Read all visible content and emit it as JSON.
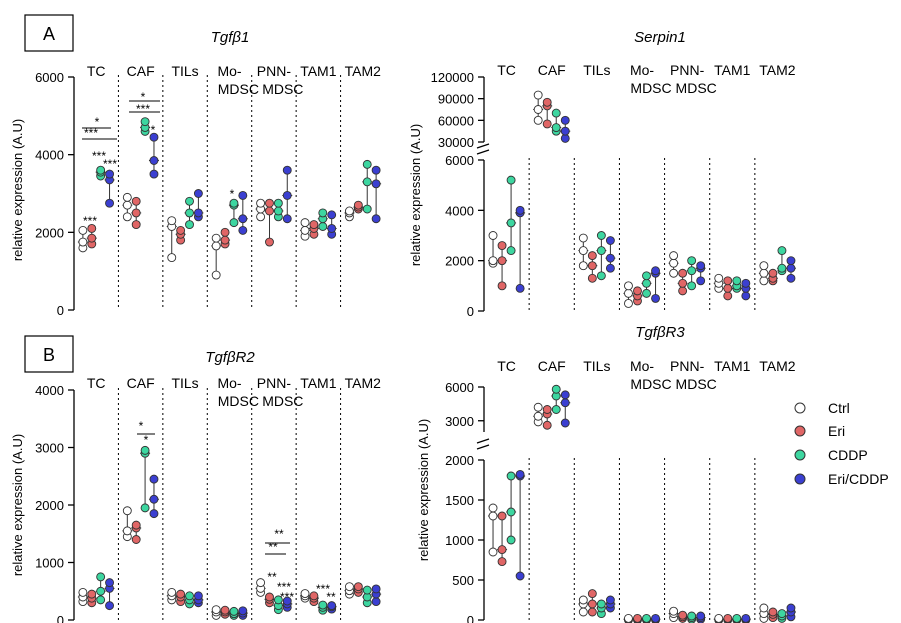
{
  "panel_labels": {
    "a": "A",
    "b": "B"
  },
  "legend": [
    {
      "label": "Ctrl",
      "color": "#ffffff"
    },
    {
      "label": "Eri",
      "color": "#e06666"
    },
    {
      "label": "CDDP",
      "color": "#3dd6a0"
    },
    {
      "label": "Eri/CDDP",
      "color": "#3b3fd1"
    }
  ],
  "chart_data": [
    {
      "type": "scatter",
      "title": "Tgfβ1",
      "ylabel": "relative expression (A.U)",
      "ylim": [
        0,
        6000
      ],
      "yticks": [
        "0",
        "2000",
        "4000",
        "6000"
      ],
      "categories": [
        "TC",
        "CAF",
        "TILs",
        "Mo-\nMDSC",
        "PNN-\nMDSC",
        "TAM1",
        "TAM2"
      ],
      "category_labels": [
        [
          "TC"
        ],
        [
          "CAF"
        ],
        [
          "TILs"
        ],
        [
          "Mo-",
          "MDSC"
        ],
        [
          "PNN-",
          "MDSC"
        ],
        [
          "TAM1"
        ],
        [
          "TAM2"
        ]
      ],
      "groups": [
        "Ctrl",
        "Eri",
        "CDDP",
        "Eri/CDDP"
      ],
      "values": [
        [
          [
            1600,
            1750,
            2050
          ],
          [
            1700,
            1850,
            2100
          ],
          [
            3450,
            3550,
            3600
          ],
          [
            2750,
            3350,
            3500
          ]
        ],
        [
          [
            2400,
            2700,
            2900
          ],
          [
            2200,
            2500,
            2800
          ],
          [
            4600,
            4700,
            4850
          ],
          [
            3500,
            3850,
            4450
          ]
        ],
        [
          [
            1350,
            2150,
            2300
          ],
          [
            1800,
            1950,
            2050
          ],
          [
            2200,
            2500,
            2800
          ],
          [
            2400,
            2500,
            3000
          ]
        ],
        [
          [
            900,
            1650,
            1850
          ],
          [
            1700,
            1800,
            2000
          ],
          [
            2250,
            2700,
            2750
          ],
          [
            2050,
            2350,
            2950
          ]
        ],
        [
          [
            2400,
            2600,
            2750
          ],
          [
            1750,
            2550,
            2750
          ],
          [
            2400,
            2550,
            2750
          ],
          [
            2350,
            2950,
            3600
          ]
        ],
        [
          [
            1900,
            2050,
            2250
          ],
          [
            1950,
            2100,
            2200
          ],
          [
            2150,
            2350,
            2500
          ],
          [
            1950,
            2100,
            2450
          ]
        ],
        [
          [
            2400,
            2500,
            2550
          ],
          [
            2600,
            2650,
            2700
          ],
          [
            2600,
            3300,
            3750
          ],
          [
            2350,
            3250,
            3600
          ]
        ]
      ],
      "annotations": [
        "***",
        "*",
        "***",
        "***",
        "***",
        "***",
        "*",
        "***",
        "*",
        "*"
      ]
    },
    {
      "type": "scatter",
      "title": "Serpin1",
      "ylabel": "relative expression (A.U)",
      "ylim_lower": [
        0,
        6000
      ],
      "ylim_upper": [
        30000,
        120000
      ],
      "yticks_lower": [
        "0",
        "2000",
        "4000",
        "6000"
      ],
      "yticks_upper": [
        "30000",
        "60000",
        "90000",
        "120000"
      ],
      "categories": [
        "TC",
        "CAF",
        "TILs",
        "Mo-\nMDSC",
        "PNN-\nMDSC",
        "TAM1",
        "TAM2"
      ],
      "category_labels": [
        [
          "TC"
        ],
        [
          "CAF"
        ],
        [
          "TILs"
        ],
        [
          "Mo-",
          "MDSC"
        ],
        [
          "PNN-",
          "MDSC"
        ],
        [
          "TAM1"
        ],
        [
          "TAM2"
        ]
      ],
      "groups": [
        "Ctrl",
        "Eri",
        "CDDP",
        "Eri/CDDP"
      ],
      "values": [
        [
          [
            1900,
            2000,
            3000
          ],
          [
            1000,
            2000,
            2600
          ],
          [
            2400,
            3500,
            5200
          ],
          [
            900,
            3900,
            4000
          ]
        ],
        [
          [
            60000,
            75000,
            95000
          ],
          [
            55000,
            80000,
            85000
          ],
          [
            45000,
            50000,
            70000
          ],
          [
            35000,
            45000,
            60000
          ]
        ],
        [
          [
            1800,
            2400,
            2900
          ],
          [
            1300,
            1800,
            2200
          ],
          [
            1400,
            2400,
            3000
          ],
          [
            1700,
            2100,
            2800
          ]
        ],
        [
          [
            300,
            700,
            1000
          ],
          [
            400,
            600,
            800
          ],
          [
            700,
            1100,
            1400
          ],
          [
            500,
            1500,
            1600
          ]
        ],
        [
          [
            1500,
            1900,
            2200
          ],
          [
            800,
            1100,
            1500
          ],
          [
            1000,
            1600,
            2000
          ],
          [
            1200,
            1700,
            1800
          ]
        ],
        [
          [
            900,
            1100,
            1300
          ],
          [
            600,
            900,
            1200
          ],
          [
            900,
            1000,
            1200
          ],
          [
            600,
            900,
            1100
          ]
        ],
        [
          [
            1200,
            1500,
            1800
          ],
          [
            1200,
            1300,
            1500
          ],
          [
            1600,
            1700,
            2400
          ],
          [
            1300,
            1700,
            2000
          ]
        ]
      ]
    },
    {
      "type": "scatter",
      "title": "TgfβR2",
      "ylabel": "relative expression (A.U)",
      "ylim": [
        0,
        4000
      ],
      "yticks": [
        "0",
        "1000",
        "2000",
        "3000",
        "4000"
      ],
      "categories": [
        "TC",
        "CAF",
        "TILs",
        "Mo-\nMDSC",
        "PNN-\nMDSC",
        "TAM1",
        "TAM2"
      ],
      "category_labels": [
        [
          "TC"
        ],
        [
          "CAF"
        ],
        [
          "TILs"
        ],
        [
          "Mo-",
          "MDSC"
        ],
        [
          "PNN-",
          "MDSC"
        ],
        [
          "TAM1"
        ],
        [
          "TAM2"
        ]
      ],
      "groups": [
        "Ctrl",
        "Eri",
        "CDDP",
        "Eri/CDDP"
      ],
      "values": [
        [
          [
            320,
            400,
            480
          ],
          [
            300,
            380,
            450
          ],
          [
            350,
            500,
            750
          ],
          [
            250,
            550,
            650
          ]
        ],
        [
          [
            1450,
            1550,
            1900
          ],
          [
            1400,
            1600,
            1650
          ],
          [
            1950,
            2900,
            2950
          ],
          [
            1850,
            2100,
            2450
          ]
        ],
        [
          [
            350,
            420,
            480
          ],
          [
            320,
            400,
            450
          ],
          [
            280,
            350,
            420
          ],
          [
            300,
            350,
            420
          ]
        ],
        [
          [
            80,
            140,
            180
          ],
          [
            100,
            140,
            170
          ],
          [
            80,
            110,
            150
          ],
          [
            80,
            120,
            160
          ]
        ],
        [
          [
            480,
            550,
            650
          ],
          [
            300,
            360,
            400
          ],
          [
            180,
            250,
            350
          ],
          [
            220,
            280,
            330
          ]
        ],
        [
          [
            380,
            420,
            460
          ],
          [
            320,
            380,
            420
          ],
          [
            170,
            220,
            260
          ],
          [
            190,
            230,
            250
          ]
        ],
        [
          [
            450,
            510,
            580
          ],
          [
            480,
            540,
            580
          ],
          [
            300,
            400,
            520
          ],
          [
            320,
            450,
            540
          ]
        ]
      ],
      "annotations": [
        "*",
        "*",
        "**",
        "**",
        "**",
        "***",
        "***",
        "***",
        "**"
      ]
    },
    {
      "type": "scatter",
      "title": "TgfβR3",
      "ylabel": "relative expression (A.U)",
      "ylim_lower": [
        0,
        2000
      ],
      "ylim_upper": [
        2000,
        6000
      ],
      "yticks_lower": [
        "0",
        "500",
        "1000",
        "1500",
        "2000"
      ],
      "yticks_upper": [
        "3000",
        "6000"
      ],
      "categories": [
        "TC",
        "CAF",
        "TILs",
        "Mo-\nMDSC",
        "PNN-\nMDSC",
        "TAM1",
        "TAM2"
      ],
      "category_labels": [
        [
          "TC"
        ],
        [
          "CAF"
        ],
        [
          "TILs"
        ],
        [
          "Mo-",
          "MDSC"
        ],
        [
          "PNN-",
          "MDSC"
        ],
        [
          "TAM1"
        ],
        [
          "TAM2"
        ]
      ],
      "groups": [
        "Ctrl",
        "Eri",
        "CDDP",
        "Eri/CDDP"
      ],
      "values": [
        [
          [
            850,
            1300,
            1400
          ],
          [
            730,
            880,
            1300
          ],
          [
            1000,
            1350,
            1800
          ],
          [
            550,
            1800,
            1820
          ]
        ],
        [
          [
            2900,
            3400,
            4200
          ],
          [
            2600,
            3600,
            4000
          ],
          [
            4000,
            5200,
            5800
          ],
          [
            2800,
            4600,
            5300
          ]
        ],
        [
          [
            100,
            200,
            250
          ],
          [
            100,
            200,
            330
          ],
          [
            80,
            150,
            200
          ],
          [
            150,
            200,
            250
          ]
        ],
        [
          [
            0,
            10,
            20
          ],
          [
            0,
            10,
            20
          ],
          [
            0,
            10,
            20
          ],
          [
            0,
            10,
            20
          ]
        ],
        [
          [
            30,
            80,
            110
          ],
          [
            20,
            40,
            60
          ],
          [
            10,
            30,
            50
          ],
          [
            10,
            30,
            50
          ]
        ],
        [
          [
            0,
            10,
            20
          ],
          [
            0,
            10,
            20
          ],
          [
            0,
            10,
            20
          ],
          [
            0,
            10,
            20
          ]
        ],
        [
          [
            20,
            80,
            150
          ],
          [
            30,
            70,
            100
          ],
          [
            20,
            50,
            80
          ],
          [
            40,
            100,
            150
          ]
        ]
      ]
    }
  ]
}
